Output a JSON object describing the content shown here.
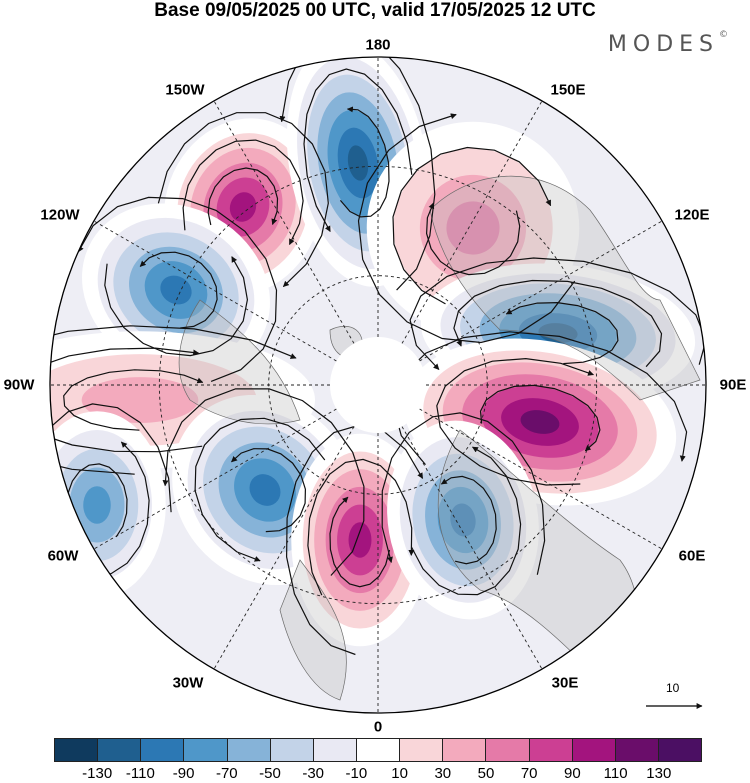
{
  "title": "Base 09/05/2025 00 UTC, valid 17/05/2025 12 UTC",
  "brand": "MODES",
  "brand_mark": "©",
  "longitude_labels": [
    "180",
    "150E",
    "120E",
    "90E",
    "60E",
    "30E",
    "0",
    "30W",
    "60W",
    "90W",
    "120W",
    "150W"
  ],
  "vector_scale": {
    "label": "10"
  },
  "colorbar": {
    "colors": [
      "#0f3a5e",
      "#1f5f8f",
      "#2c78b4",
      "#4f97c9",
      "#86b3d8",
      "#c3d3e8",
      "#e9e9f3",
      "#ffffff",
      "#f9d6d9",
      "#f3aabd",
      "#e57aa8",
      "#cc3f93",
      "#a3147e",
      "#6a0d6a",
      "#4b0f63"
    ],
    "tick_labels": [
      "-130",
      "-110",
      "-90",
      "-70",
      "-50",
      "-30",
      "-10",
      "10",
      "30",
      "50",
      "70",
      "90",
      "110",
      "130"
    ]
  },
  "chart_data": {
    "type": "heatmap",
    "title": "Base 09/05/2025 00 UTC, valid 17/05/2025 12 UTC",
    "projection": "north-polar-stereographic",
    "units_colorbar": [
      "-130",
      "-110",
      "-90",
      "-70",
      "-50",
      "-30",
      "-10",
      "10",
      "30",
      "50",
      "70",
      "90",
      "110",
      "130"
    ],
    "anomalies": [
      {
        "near_lon": "150W",
        "sign": "positive",
        "peak": 110
      },
      {
        "near_lon": "170W",
        "sign": "negative",
        "peak": -110
      },
      {
        "near_lon": "120E-150E",
        "sign": "positive",
        "peak": 70
      },
      {
        "near_lon": "120W",
        "sign": "negative",
        "peak": -90
      },
      {
        "near_lon": "90E-120E",
        "sign": "negative",
        "peak": -110
      },
      {
        "near_lon": "90W",
        "sign": "positive",
        "peak": 50
      },
      {
        "near_lon": "60E-90E",
        "sign": "positive",
        "peak": 130
      },
      {
        "near_lon": "60W",
        "sign": "negative",
        "peak": -70
      },
      {
        "near_lon": "30W-60W",
        "sign": "negative",
        "peak": -90
      },
      {
        "near_lon": "0-30W",
        "sign": "positive",
        "peak": 110
      },
      {
        "near_lon": "30E",
        "sign": "negative",
        "peak": -90
      }
    ]
  }
}
